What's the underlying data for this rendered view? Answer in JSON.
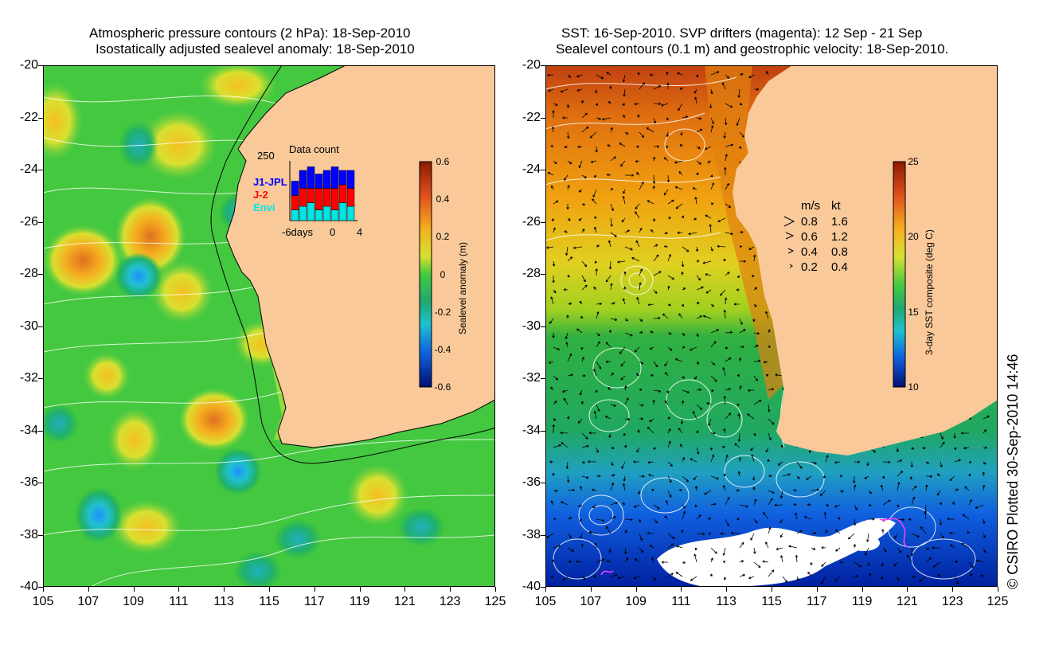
{
  "left_panel": {
    "title_line1": "Atmospheric pressure contours (2 hPa): 18-Sep-2010",
    "title_line2": "Isostatically adjusted sealevel anomaly: 18-Sep-2010",
    "colorbar_label": "Sealevel anomaly (m)",
    "colorbar_ticks": [
      "0.6",
      "0.4",
      "0.2",
      "0",
      "-0.2",
      "-0.4",
      "-0.6"
    ],
    "inset": {
      "title": "Data count",
      "ymax_label": "250",
      "series": [
        {
          "name": "J1-JPL",
          "color": "#0000ff"
        },
        {
          "name": "J-2",
          "color": "#ff0000"
        },
        {
          "name": "Envi",
          "color": "#00e5e5"
        }
      ],
      "x_labels": [
        "-6days",
        "0",
        "4"
      ]
    }
  },
  "right_panel": {
    "title_line1": "SST: 16-Sep-2010. SVP drifters (magenta): 12 Sep - 21 Sep",
    "title_line2": "Sealevel contours (0.1 m) and geostrophic velocity: 18-Sep-2010.",
    "colorbar_label": "3-day SST composite (deg C)",
    "colorbar_ticks": [
      "25",
      "20",
      "15",
      "10"
    ],
    "velocity_legend": {
      "header_ms": "m/s",
      "header_kt": "kt",
      "rows": [
        {
          "ms": "0.8",
          "kt": "1.6"
        },
        {
          "ms": "0.6",
          "kt": "1.2"
        },
        {
          "ms": "0.4",
          "kt": "0.8"
        },
        {
          "ms": "0.2",
          "kt": "0.4"
        }
      ]
    }
  },
  "axes": {
    "lat_ticks": [
      "-20",
      "-22",
      "-24",
      "-26",
      "-28",
      "-30",
      "-32",
      "-34",
      "-36",
      "-38",
      "-40"
    ],
    "lon_ticks": [
      "105",
      "107",
      "109",
      "111",
      "113",
      "115",
      "117",
      "119",
      "121",
      "123",
      "125"
    ]
  },
  "copyright": "© CSIRO Plotted 30-Sep-2010 14:46",
  "colors": {
    "land": "#f9c99a",
    "ocean_green": "#3ecf3e",
    "contour": "#ffffff"
  }
}
